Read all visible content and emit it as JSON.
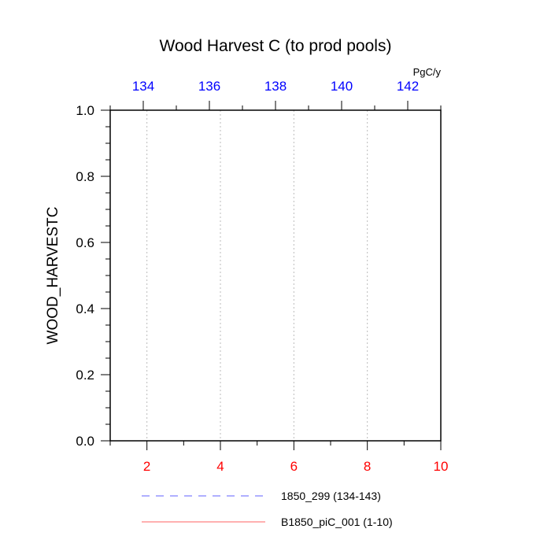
{
  "chart_data": {
    "type": "line",
    "title": "Wood Harvest C (to prod pools)",
    "ylabel": "WOOD_HARVESTC",
    "units": "PgC/y",
    "ylim": [
      0,
      1
    ],
    "y_ticks": [
      "0.0",
      "0.2",
      "0.4",
      "0.6",
      "0.8",
      "1.0"
    ],
    "x_bottom": {
      "range": [
        1,
        10
      ],
      "ticks": [
        "2",
        "4",
        "6",
        "8",
        "10"
      ],
      "color": "#ff0000"
    },
    "x_top": {
      "range": [
        133,
        143
      ],
      "ticks": [
        "134",
        "136",
        "138",
        "140",
        "142"
      ],
      "color": "#0000ff"
    },
    "grid": "vertical-dotted",
    "series": [
      {
        "name": "1850_299 (134-143)",
        "axis": "top",
        "style": "dashed",
        "color": "#8080ff",
        "x": [],
        "y": []
      },
      {
        "name": "B1850_piC_001 (1-10)",
        "axis": "bottom",
        "style": "solid",
        "color": "#ff8080",
        "x": [],
        "y": []
      }
    ]
  }
}
